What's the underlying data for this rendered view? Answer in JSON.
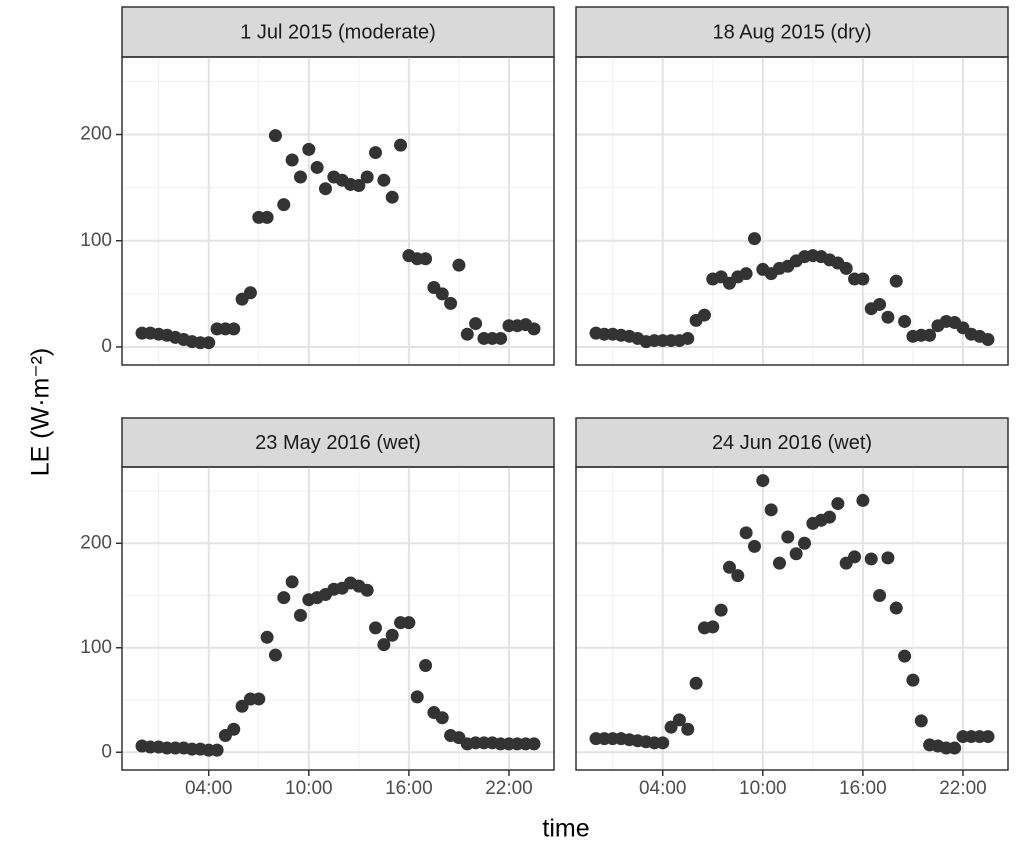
{
  "y_label": "LE (W·m⁻²)",
  "x_label": "time",
  "chart_data": [
    {
      "type": "scatter",
      "title": "1 Jul 2015 (moderate)",
      "color": "#333333",
      "grid": true,
      "xlim": [
        -1.2,
        24.7
      ],
      "ylim": [
        -17,
        273
      ],
      "xticks": [
        4,
        10,
        16,
        22
      ],
      "yticks": [
        0,
        100,
        200
      ],
      "x": [
        0,
        0.5,
        1,
        1.5,
        2,
        2.5,
        3,
        3.5,
        4,
        4.5,
        5,
        5.5,
        6,
        6.5,
        7,
        7.5,
        8,
        8.5,
        9,
        9.5,
        10,
        10.5,
        11,
        11.5,
        12,
        12.5,
        13,
        13.5,
        14,
        14.5,
        15,
        15.5,
        16,
        16.5,
        17,
        17.5,
        18,
        18.5,
        19,
        19.5,
        20,
        20.5,
        21,
        21.5,
        22,
        22.5,
        23,
        23.5
      ],
      "values": [
        13,
        13,
        12,
        11,
        9,
        7,
        5,
        4,
        4,
        17,
        17,
        17,
        45,
        51,
        122,
        122,
        199,
        134,
        176,
        160,
        186,
        169,
        149,
        160,
        157,
        153,
        152,
        160,
        183,
        157,
        141,
        190,
        86,
        83,
        83,
        56,
        50,
        41,
        77,
        12,
        22,
        8,
        8,
        8,
        20,
        20,
        21,
        17
      ]
    },
    {
      "type": "scatter",
      "title": "18 Aug 2015 (dry)",
      "color": "#333333",
      "grid": true,
      "xlim": [
        -1.2,
        24.7
      ],
      "ylim": [
        -17,
        273
      ],
      "xticks": [
        4,
        10,
        16,
        22
      ],
      "yticks": [
        0,
        100,
        200
      ],
      "x": [
        0,
        0.5,
        1,
        1.5,
        2,
        2.5,
        3,
        3.5,
        4,
        4.5,
        5,
        5.5,
        6,
        6.5,
        7,
        7.5,
        8,
        8.5,
        9,
        9.5,
        10,
        10.5,
        11,
        11.5,
        12,
        12.5,
        13,
        13.5,
        14,
        14.5,
        15,
        15.5,
        16,
        16.5,
        17,
        17.5,
        18,
        18.5,
        19,
        19.5,
        20,
        20.5,
        21,
        21.5,
        22,
        22.5,
        23,
        23.5
      ],
      "values": [
        13,
        12,
        12,
        11,
        10,
        8,
        5,
        6,
        6,
        6,
        6,
        8,
        25,
        30,
        64,
        66,
        60,
        66,
        69,
        102,
        73,
        69,
        74,
        76,
        81,
        85,
        86,
        85,
        82,
        79,
        74,
        64,
        64,
        36,
        40,
        28,
        62,
        24,
        10,
        11,
        11,
        20,
        24,
        23,
        18,
        12,
        10,
        7
      ]
    },
    {
      "type": "scatter",
      "title": "23 May 2016 (wet)",
      "color": "#333333",
      "grid": true,
      "xlim": [
        -1.2,
        24.7
      ],
      "ylim": [
        -17,
        273
      ],
      "xticks": [
        {
          "value": 4,
          "label": "04:00"
        },
        {
          "value": 10,
          "label": "10:00"
        },
        {
          "value": 16,
          "label": "16:00"
        },
        {
          "value": 22,
          "label": "22:00"
        }
      ],
      "yticks": [
        0,
        100,
        200
      ],
      "x": [
        0,
        0.5,
        1,
        1.5,
        2,
        2.5,
        3,
        3.5,
        4,
        4.5,
        5,
        5.5,
        6,
        6.5,
        7,
        7.5,
        8,
        8.5,
        9,
        9.5,
        10,
        10.5,
        11,
        11.5,
        12,
        12.5,
        13,
        13.5,
        14,
        14.5,
        15,
        15.5,
        16,
        16.5,
        17,
        17.5,
        18,
        18.5,
        19,
        19.5,
        20,
        20.5,
        21,
        21.5,
        22,
        22.5,
        23,
        23.5
      ],
      "values": [
        6,
        5,
        5,
        4,
        4,
        4,
        3,
        3,
        2,
        2,
        16,
        22,
        44,
        51,
        51,
        110,
        93,
        148,
        163,
        131,
        146,
        148,
        151,
        156,
        157,
        162,
        159,
        155,
        119,
        103,
        112,
        124,
        124,
        53,
        83,
        38,
        33,
        16,
        14,
        8,
        9,
        9,
        9,
        8,
        8,
        8,
        8,
        8
      ]
    },
    {
      "type": "scatter",
      "title": "24 Jun 2016 (wet)",
      "color": "#333333",
      "grid": true,
      "xlim": [
        -1.2,
        24.7
      ],
      "ylim": [
        -17,
        273
      ],
      "xticks": [
        {
          "value": 4,
          "label": "04:00"
        },
        {
          "value": 10,
          "label": "10:00"
        },
        {
          "value": 16,
          "label": "16:00"
        },
        {
          "value": 22,
          "label": "22:00"
        }
      ],
      "yticks": [
        0,
        100,
        200
      ],
      "x": [
        0,
        0.5,
        1,
        1.5,
        2,
        2.5,
        3,
        3.5,
        4,
        4.5,
        5,
        5.5,
        6,
        6.5,
        7,
        7.5,
        8,
        8.5,
        9,
        9.5,
        10,
        10.5,
        11,
        11.5,
        12,
        12.5,
        13,
        13.5,
        14,
        14.5,
        15,
        15.5,
        16,
        16.5,
        17,
        17.5,
        18,
        18.5,
        19,
        19.5,
        20,
        20.5,
        21,
        21.5,
        22,
        22.5,
        23,
        23.5
      ],
      "values": [
        13,
        13,
        13,
        13,
        12,
        11,
        10,
        9,
        9,
        24,
        31,
        22,
        66,
        119,
        120,
        136,
        177,
        169,
        210,
        197,
        260,
        232,
        181,
        206,
        190,
        200,
        219,
        222,
        225,
        238,
        181,
        187,
        241,
        185,
        150,
        186,
        138,
        92,
        69,
        30,
        7,
        6,
        4,
        4,
        15,
        15,
        15,
        15
      ]
    }
  ]
}
